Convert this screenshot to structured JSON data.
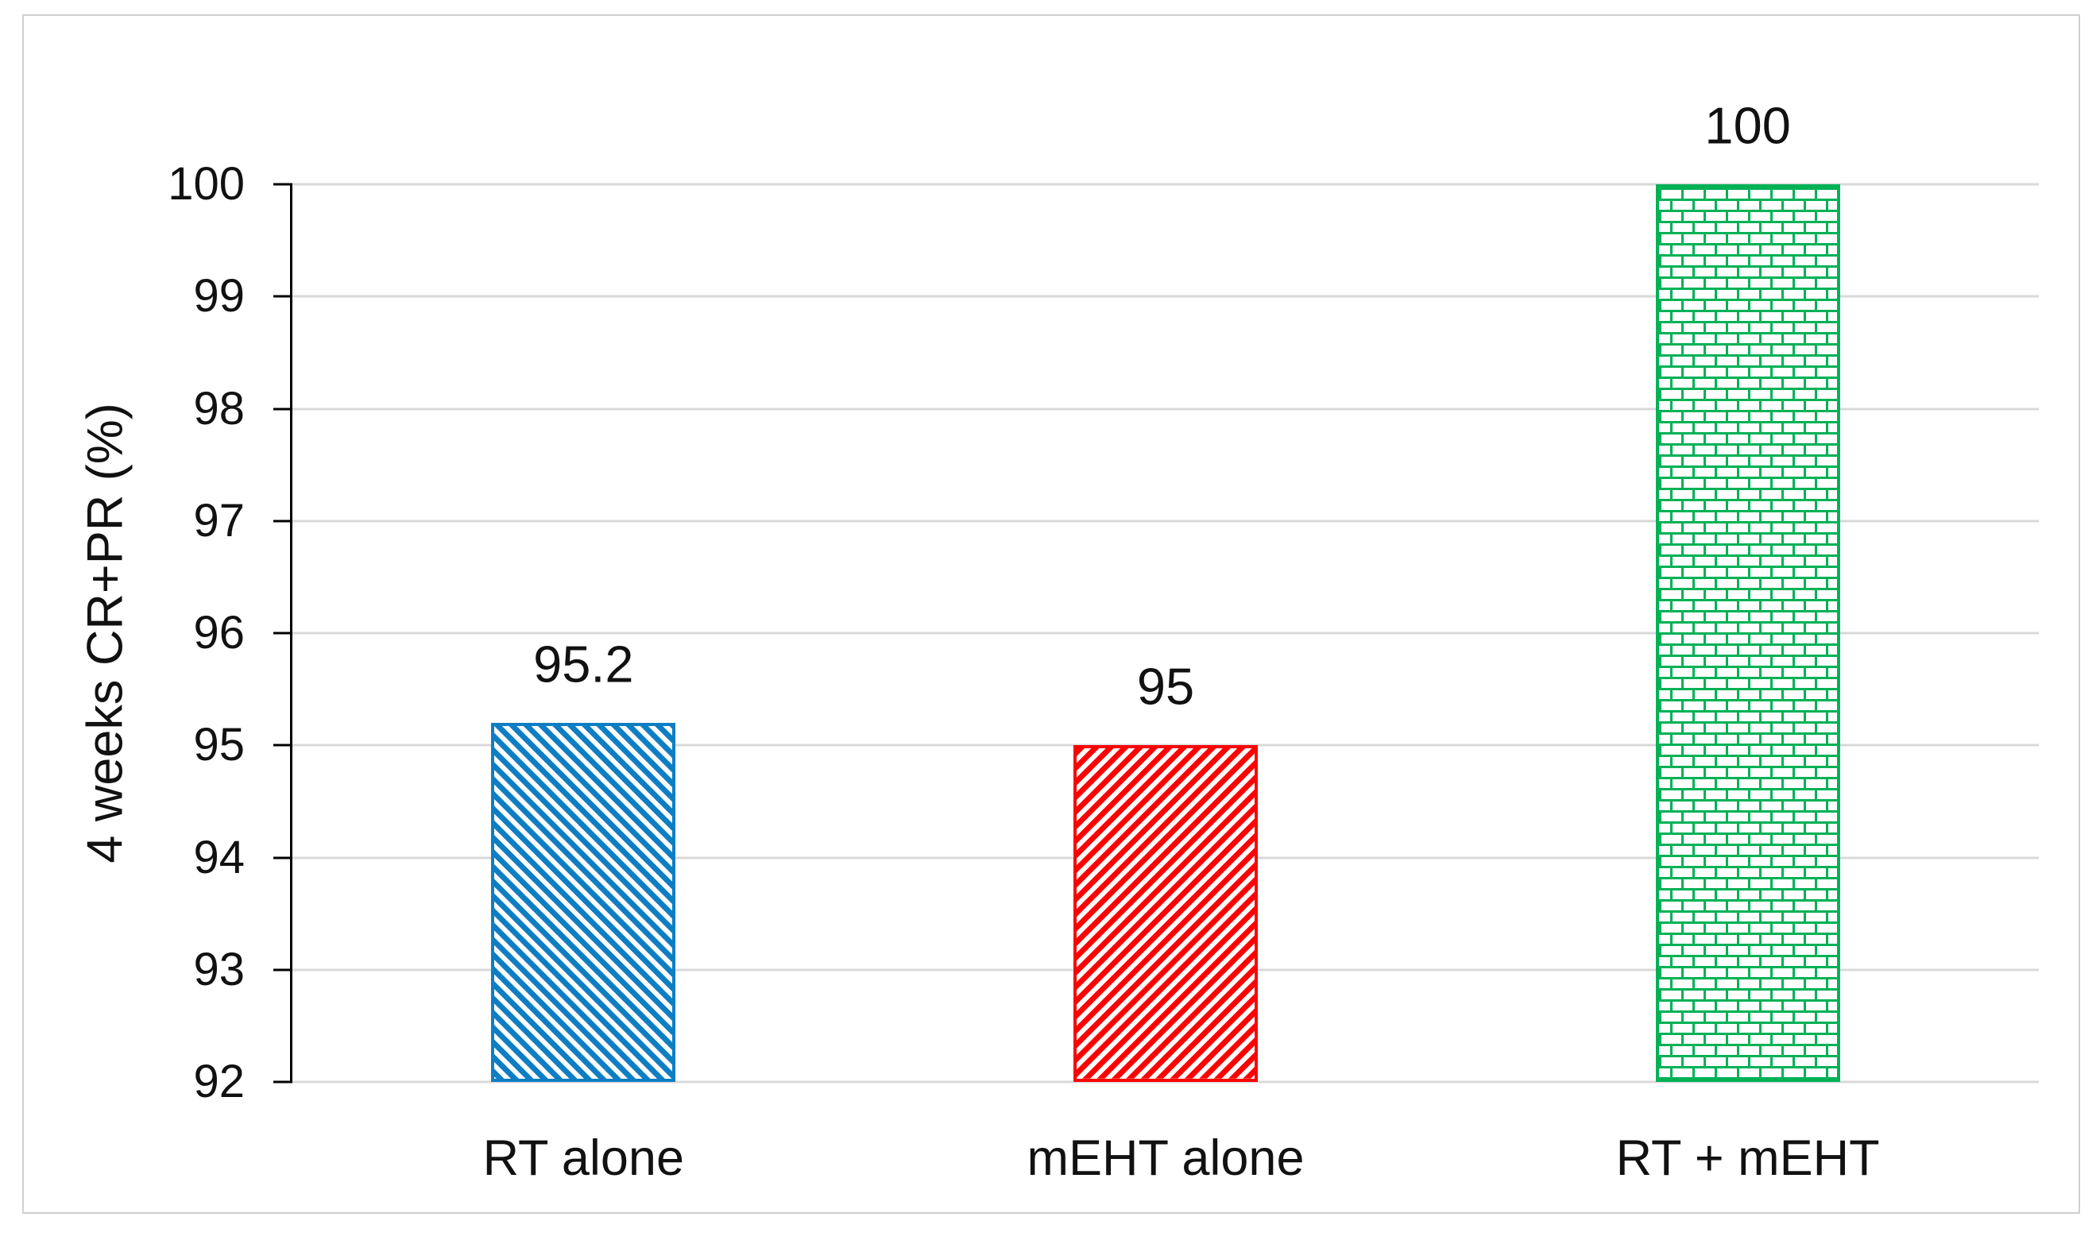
{
  "chart_data": {
    "type": "bar",
    "title": "",
    "categories": [
      "RT alone",
      "mEHT alone",
      "RT + mEHT"
    ],
    "values": [
      95.2,
      95,
      100
    ],
    "bars": [
      {
        "category": "RT alone",
        "value": 95.2,
        "label": "95.2",
        "color": "#0e7ec4",
        "pattern": "diagonal-stripe-up"
      },
      {
        "category": "mEHT alone",
        "value": 95,
        "label": "95",
        "color": "#fe0000",
        "pattern": "diagonal-stripe-down"
      },
      {
        "category": "RT + mEHT",
        "value": 100,
        "label": "100",
        "color": "#00b156",
        "pattern": "brick"
      }
    ],
    "xlabel": "",
    "ylabel": "4 weeks CR+PR (%)",
    "ylim": [
      92,
      100
    ],
    "yticks": [
      92,
      93,
      94,
      95,
      96,
      97,
      98,
      99,
      100
    ],
    "grid": "horizontal",
    "legend": "none",
    "colors": {
      "axis": "#000000",
      "gridline": "#d9d9d9",
      "frame_border": "#cfcfcf",
      "text": "#111111",
      "background": "#ffffff"
    }
  }
}
